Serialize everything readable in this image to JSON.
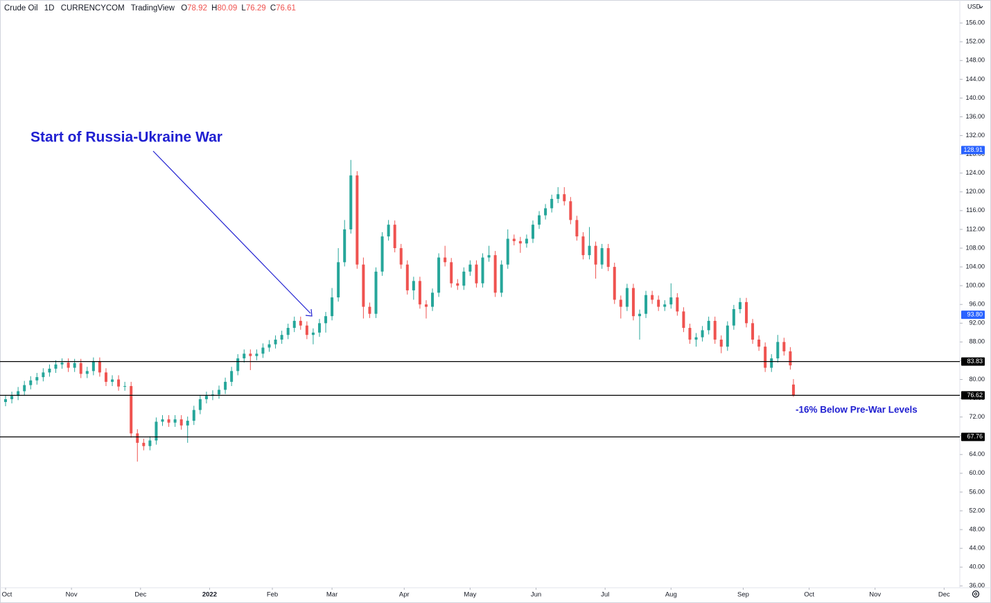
{
  "chart_data": {
    "type": "candlestick",
    "title": "Crude Oil",
    "interval": "1D",
    "exchange": "CURRENCYCOM",
    "source": "TradingView",
    "ohlc_labels": [
      "O",
      "H",
      "L",
      "C"
    ],
    "currency": "USD",
    "annotations": [
      "Start of Russia-Ukraine War",
      "-16% Below Pre-War Levels"
    ],
    "annotation_color": "#1f1fd1",
    "up_color": "#26a69a",
    "down_color": "#ef5350",
    "x": [
      0,
      2,
      4,
      6,
      8,
      10,
      12,
      14,
      16,
      18,
      20,
      22,
      24,
      26,
      28,
      30,
      32,
      34,
      36,
      38,
      40,
      42,
      44,
      46,
      48,
      50,
      52,
      54,
      56,
      58,
      60,
      62,
      64,
      66,
      68,
      70,
      72,
      74,
      76,
      78,
      80,
      82,
      84,
      86,
      88,
      90,
      92,
      94,
      96,
      98,
      100,
      102,
      104,
      106,
      108,
      110,
      112,
      114,
      116,
      118,
      120,
      122,
      124,
      126,
      128,
      130,
      132,
      134,
      136,
      138,
      140,
      142,
      144,
      146,
      148,
      150,
      152,
      154,
      156,
      158,
      160,
      162,
      164,
      166,
      168,
      170,
      172,
      174,
      176,
      178,
      180,
      182,
      184,
      186,
      188,
      190,
      192,
      194,
      196,
      198,
      200,
      202,
      204,
      206,
      208,
      210,
      212,
      214,
      216,
      218,
      220,
      222,
      224,
      226,
      228,
      230,
      232,
      234,
      236,
      238,
      240,
      242,
      244,
      246,
      248,
      250,
      251
    ],
    "open": [
      75.2,
      75.8,
      76.5,
      77.5,
      78.8,
      79.8,
      80.5,
      81.5,
      82.3,
      83.2,
      83.6,
      82.5,
      83.5,
      81.2,
      81.8,
      83.8,
      81.5,
      79.5,
      80.0,
      78.5,
      78.6,
      68.5,
      66.5,
      65.8,
      67.0,
      71.0,
      71.5,
      70.8,
      71.5,
      70.2,
      71.2,
      73.5,
      75.8,
      76.5,
      76.8,
      77.8,
      79.5,
      81.8,
      84.5,
      85.5,
      85.0,
      85.5,
      86.8,
      87.5,
      88.5,
      89.5,
      91.0,
      92.5,
      91.5,
      89.5,
      90.0,
      92.0,
      93.5,
      97.5,
      105.0,
      112.0,
      123.5,
      104.5,
      95.5,
      94.0,
      103.0,
      110.5,
      113.0,
      108.0,
      104.5,
      99.0,
      101.0,
      96.0,
      95.5,
      98.5,
      106.0,
      105.0,
      100.5,
      100.0,
      103.0,
      104.5,
      100.5,
      106.0,
      106.5,
      98.5,
      104.5,
      110.0,
      109.5,
      109.0,
      110.0,
      113.0,
      115.0,
      116.5,
      118.5,
      119.5,
      118.0,
      114.0,
      110.5,
      106.5,
      108.5,
      104.5,
      108.0,
      104.0,
      97.0,
      95.5,
      99.5,
      93.5,
      94.0,
      98.0,
      97.0,
      95.5,
      96.0,
      97.5,
      94.5,
      91.0,
      88.5,
      89.0,
      90.5,
      92.5,
      88.5,
      87.0,
      91.5,
      95.0,
      96.5,
      92.0,
      88.5,
      87.0,
      82.5,
      84.5,
      88.0,
      86.0,
      78.92
    ],
    "high": [
      76.7,
      77.4,
      78.4,
      79.7,
      80.7,
      81.4,
      82.4,
      83.2,
      84.1,
      84.5,
      84.5,
      84.4,
      84.4,
      82.7,
      84.7,
      84.7,
      82.4,
      80.9,
      80.9,
      79.5,
      79.5,
      69.4,
      67.4,
      67.9,
      71.9,
      72.4,
      72.4,
      72.4,
      72.4,
      72.1,
      74.4,
      76.7,
      77.4,
      77.7,
      78.7,
      80.4,
      82.7,
      85.4,
      86.4,
      86.4,
      86.4,
      87.7,
      88.4,
      89.4,
      90.4,
      91.9,
      93.4,
      93.4,
      92.4,
      90.9,
      92.9,
      94.4,
      99.5,
      108.0,
      114.0,
      126.8,
      124.4,
      106.0,
      96.4,
      103.9,
      111.4,
      114.0,
      113.9,
      108.9,
      105.4,
      101.9,
      101.9,
      96.9,
      99.4,
      106.9,
      108.5,
      105.9,
      101.4,
      103.9,
      105.4,
      105.4,
      106.9,
      108.5,
      107.4,
      105.4,
      112.0,
      110.9,
      110.4,
      110.9,
      113.9,
      115.9,
      117.4,
      119.4,
      121.0,
      121.0,
      118.9,
      114.9,
      111.4,
      112.5,
      109.4,
      108.9,
      108.9,
      104.9,
      97.9,
      100.4,
      100.4,
      94.9,
      98.9,
      98.9,
      97.9,
      96.9,
      100.5,
      98.4,
      95.4,
      91.9,
      89.9,
      91.4,
      93.4,
      93.4,
      89.4,
      92.4,
      95.9,
      97.4,
      97.4,
      92.9,
      89.4,
      87.9,
      85.4,
      89.5,
      88.9,
      86.9,
      80.09
    ],
    "low": [
      74.3,
      74.9,
      75.6,
      76.6,
      77.9,
      78.9,
      79.6,
      80.6,
      81.4,
      82.3,
      81.6,
      81.6,
      80.3,
      80.3,
      80.9,
      80.6,
      78.6,
      78.6,
      77.6,
      77.6,
      67.6,
      62.5,
      64.9,
      64.9,
      66.1,
      70.1,
      69.9,
      69.9,
      69.3,
      66.5,
      70.3,
      72.6,
      74.9,
      75.6,
      75.9,
      76.9,
      78.6,
      80.9,
      83.6,
      82.0,
      84.1,
      84.6,
      85.9,
      86.6,
      87.6,
      88.6,
      90.1,
      90.6,
      88.6,
      87.5,
      89.1,
      90.0,
      92.6,
      96.6,
      104.1,
      111.1,
      103.6,
      93.0,
      93.1,
      93.1,
      102.1,
      109.6,
      107.1,
      103.6,
      98.1,
      97.0,
      95.1,
      93.0,
      94.6,
      97.6,
      104.1,
      99.6,
      99.1,
      99.1,
      102.1,
      99.6,
      99.6,
      105.1,
      97.6,
      97.6,
      103.6,
      108.6,
      107.0,
      108.1,
      109.1,
      112.1,
      114.1,
      115.6,
      117.6,
      117.1,
      113.1,
      109.6,
      105.6,
      105.6,
      101.5,
      103.6,
      103.1,
      96.1,
      93.0,
      94.6,
      92.6,
      88.5,
      93.1,
      96.1,
      94.6,
      94.6,
      95.1,
      93.6,
      90.1,
      87.6,
      87.0,
      88.1,
      89.6,
      87.6,
      85.6,
      86.1,
      90.6,
      94.1,
      91.1,
      87.6,
      86.1,
      81.6,
      81.6,
      83.6,
      85.1,
      82.1,
      76.29
    ],
    "close": [
      75.8,
      76.5,
      77.5,
      78.8,
      79.8,
      80.5,
      81.5,
      82.3,
      83.2,
      83.6,
      82.5,
      83.5,
      81.2,
      81.8,
      83.8,
      81.5,
      79.5,
      80.0,
      78.5,
      78.6,
      68.5,
      66.5,
      65.8,
      67.0,
      71.0,
      71.5,
      70.8,
      71.5,
      70.2,
      71.2,
      73.5,
      75.8,
      76.5,
      76.8,
      77.8,
      79.5,
      81.8,
      84.5,
      85.5,
      85.0,
      85.5,
      86.8,
      87.5,
      88.5,
      89.5,
      91.0,
      92.5,
      91.5,
      89.5,
      90.0,
      92.0,
      93.5,
      97.5,
      105.0,
      112.0,
      123.5,
      104.5,
      95.5,
      94.0,
      103.0,
      110.5,
      113.0,
      108.0,
      104.5,
      99.0,
      101.0,
      96.0,
      95.5,
      98.5,
      106.0,
      105.0,
      100.5,
      100.0,
      103.0,
      104.5,
      100.5,
      106.0,
      106.5,
      98.5,
      104.5,
      110.0,
      109.5,
      109.0,
      110.0,
      113.0,
      115.0,
      116.5,
      118.5,
      119.5,
      118.0,
      114.0,
      110.5,
      106.5,
      108.5,
      104.5,
      108.0,
      104.0,
      97.0,
      95.5,
      99.5,
      93.5,
      94.0,
      98.0,
      97.0,
      95.5,
      96.0,
      97.5,
      94.5,
      91.0,
      88.5,
      89.0,
      90.5,
      92.5,
      88.5,
      87.0,
      91.5,
      95.0,
      96.5,
      92.0,
      88.5,
      87.0,
      82.5,
      84.5,
      88.0,
      86.0,
      83.0,
      76.61
    ],
    "xlim": [
      -1.77,
      304
    ],
    "xticks": [
      {
        "value": 0,
        "label": "Oct"
      },
      {
        "value": 21,
        "label": "Nov"
      },
      {
        "value": 43,
        "label": "Dec"
      },
      {
        "value": 65,
        "label": "2022"
      },
      {
        "value": 85,
        "label": "Feb"
      },
      {
        "value": 104,
        "label": "Mar"
      },
      {
        "value": 127,
        "label": "Apr"
      },
      {
        "value": 148,
        "label": "May"
      },
      {
        "value": 169,
        "label": "Jun"
      },
      {
        "value": 191,
        "label": "Jul"
      },
      {
        "value": 212,
        "label": "Aug"
      },
      {
        "value": 235,
        "label": "Sep"
      },
      {
        "value": 256,
        "label": "Oct"
      },
      {
        "value": 277,
        "label": "Nov"
      },
      {
        "value": 299,
        "label": "Dec"
      }
    ],
    "ylim": [
      35.6,
      160.9
    ],
    "yticks": [
      {
        "value": 36,
        "label": "36.00"
      },
      {
        "value": 40,
        "label": "40.00"
      },
      {
        "value": 44,
        "label": "44.00"
      },
      {
        "value": 48,
        "label": "48.00"
      },
      {
        "value": 52,
        "label": "52.00"
      },
      {
        "value": 56,
        "label": "56.00"
      },
      {
        "value": 60,
        "label": "60.00"
      },
      {
        "value": 64,
        "label": "64.00"
      },
      {
        "value": 68,
        "label": "68.00"
      },
      {
        "value": 72,
        "label": "72.00"
      },
      {
        "value": 76,
        "label": "76.00"
      },
      {
        "value": 80,
        "label": "80.00"
      },
      {
        "value": 84,
        "label": "84.00"
      },
      {
        "value": 88,
        "label": "88.00"
      },
      {
        "value": 92,
        "label": "92.00"
      },
      {
        "value": 96,
        "label": "96.00"
      },
      {
        "value": 100,
        "label": "100.00"
      },
      {
        "value": 104,
        "label": "104.00"
      },
      {
        "value": 108,
        "label": "108.00"
      },
      {
        "value": 112,
        "label": "112.00"
      },
      {
        "value": 116,
        "label": "116.00"
      },
      {
        "value": 120,
        "label": "120.00"
      },
      {
        "value": 124,
        "label": "124.00"
      },
      {
        "value": 128,
        "label": "128.00"
      },
      {
        "value": 132,
        "label": "132.00"
      },
      {
        "value": 136,
        "label": "136.00"
      },
      {
        "value": 140,
        "label": "140.00"
      },
      {
        "value": 144,
        "label": "144.00"
      },
      {
        "value": 148,
        "label": "148.00"
      },
      {
        "value": 152,
        "label": "152.00"
      },
      {
        "value": 156,
        "label": "156.00"
      }
    ],
    "horizontal_lines": [
      {
        "value": 83.83,
        "color": "#000000"
      },
      {
        "value": 76.62,
        "color": "#000000"
      },
      {
        "value": 67.76,
        "color": "#000000"
      }
    ],
    "price_markers": [
      {
        "value": 128.91,
        "color": "#2962ff"
      },
      {
        "value": 93.8,
        "label": "93.80",
        "color": "#2962ff"
      }
    ]
  }
}
